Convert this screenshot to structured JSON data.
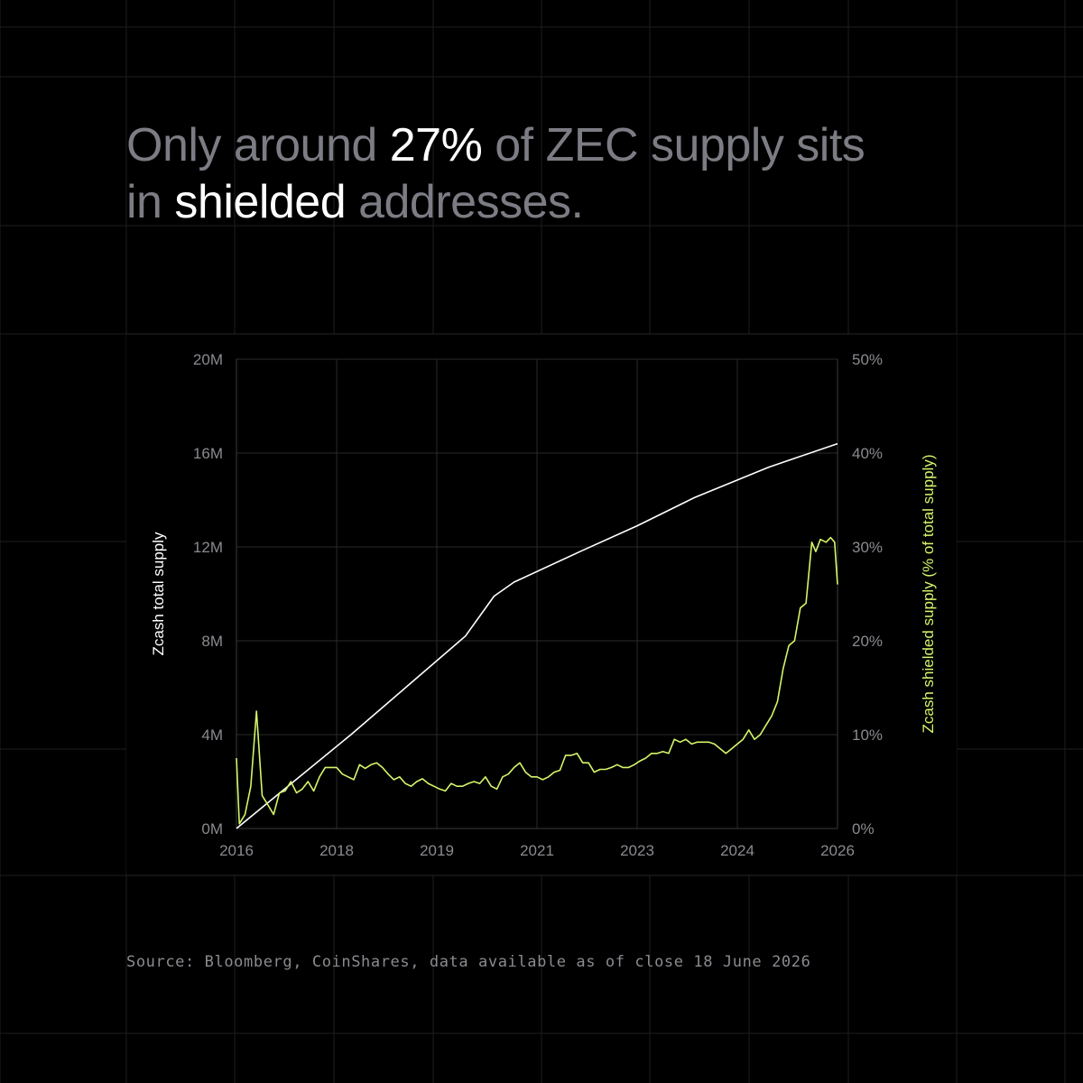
{
  "headline": {
    "seg1": "Only around ",
    "seg2": "27%",
    "seg3": " of ZEC supply sits",
    "seg4": "in ",
    "seg5": "shielded",
    "seg6": " addresses."
  },
  "source": "Source: Bloomberg, CoinShares, data available as of close 18 June 2026",
  "colors": {
    "background": "#000000",
    "supply_line": "#ffffff",
    "shielded_line": "#d4f56a",
    "muted_text": "#7c7c84",
    "grid": "#2a2a2a"
  },
  "chart_data": {
    "type": "line",
    "x_ticks": [
      "2016",
      "2018",
      "2019",
      "2021",
      "2023",
      "2024",
      "2026"
    ],
    "y_left": {
      "label": "Zcash total supply",
      "ticks": [
        "0M",
        "4M",
        "8M",
        "12M",
        "16M",
        "20M"
      ],
      "range": [
        0,
        20000000
      ]
    },
    "y_right": {
      "label": "Zcash shielded supply (% of total supply)",
      "ticks": [
        "0%",
        "10%",
        "20%",
        "30%",
        "40%",
        "50%"
      ],
      "range": [
        0,
        50
      ]
    },
    "x_range": [
      2016.0,
      2026.5
    ],
    "grid": true,
    "series": [
      {
        "name": "Zcash total supply",
        "axis": "left",
        "points": [
          [
            2016.0,
            0
          ],
          [
            2017.0,
            2000000
          ],
          [
            2018.0,
            4000000
          ],
          [
            2019.0,
            6100000
          ],
          [
            2020.0,
            8200000
          ],
          [
            2020.5,
            9900000
          ],
          [
            2020.85,
            10500000
          ],
          [
            2022.0,
            11800000
          ],
          [
            2023.0,
            12900000
          ],
          [
            2024.0,
            14100000
          ],
          [
            2025.0,
            15100000
          ],
          [
            2025.3,
            15400000
          ],
          [
            2026.5,
            16400000
          ]
        ]
      },
      {
        "name": "Zcash shielded supply (% of total supply)",
        "axis": "right",
        "points": [
          [
            2016.0,
            7.5
          ],
          [
            2016.05,
            0.5
          ],
          [
            2016.15,
            1.5
          ],
          [
            2016.25,
            4.5
          ],
          [
            2016.35,
            12.5
          ],
          [
            2016.45,
            3.5
          ],
          [
            2016.55,
            2.5
          ],
          [
            2016.65,
            1.5
          ],
          [
            2016.75,
            3.8
          ],
          [
            2016.85,
            4.0
          ],
          [
            2016.95,
            5.0
          ],
          [
            2017.05,
            3.8
          ],
          [
            2017.15,
            4.2
          ],
          [
            2017.25,
            5.0
          ],
          [
            2017.35,
            4.0
          ],
          [
            2017.45,
            5.5
          ],
          [
            2017.55,
            6.5
          ],
          [
            2017.65,
            6.5
          ],
          [
            2017.75,
            6.5
          ],
          [
            2017.85,
            5.8
          ],
          [
            2017.95,
            5.5
          ],
          [
            2018.05,
            5.2
          ],
          [
            2018.15,
            6.8
          ],
          [
            2018.25,
            6.4
          ],
          [
            2018.35,
            6.8
          ],
          [
            2018.45,
            7.0
          ],
          [
            2018.55,
            6.5
          ],
          [
            2018.65,
            5.8
          ],
          [
            2018.75,
            5.2
          ],
          [
            2018.85,
            5.5
          ],
          [
            2018.95,
            4.8
          ],
          [
            2019.05,
            4.5
          ],
          [
            2019.15,
            5.0
          ],
          [
            2019.25,
            5.3
          ],
          [
            2019.35,
            4.8
          ],
          [
            2019.45,
            4.5
          ],
          [
            2019.55,
            4.2
          ],
          [
            2019.65,
            4.0
          ],
          [
            2019.75,
            4.8
          ],
          [
            2019.85,
            4.5
          ],
          [
            2019.95,
            4.5
          ],
          [
            2020.05,
            4.8
          ],
          [
            2020.15,
            5.0
          ],
          [
            2020.25,
            4.8
          ],
          [
            2020.35,
            5.5
          ],
          [
            2020.45,
            4.5
          ],
          [
            2020.55,
            4.2
          ],
          [
            2020.65,
            5.5
          ],
          [
            2020.75,
            5.8
          ],
          [
            2020.85,
            6.5
          ],
          [
            2020.95,
            7.0
          ],
          [
            2021.05,
            6.0
          ],
          [
            2021.15,
            5.5
          ],
          [
            2021.25,
            5.5
          ],
          [
            2021.35,
            5.2
          ],
          [
            2021.45,
            5.5
          ],
          [
            2021.55,
            6.0
          ],
          [
            2021.65,
            6.2
          ],
          [
            2021.75,
            7.8
          ],
          [
            2021.85,
            7.8
          ],
          [
            2021.95,
            8.0
          ],
          [
            2022.05,
            7.0
          ],
          [
            2022.15,
            7.0
          ],
          [
            2022.25,
            6.0
          ],
          [
            2022.35,
            6.3
          ],
          [
            2022.45,
            6.3
          ],
          [
            2022.55,
            6.5
          ],
          [
            2022.65,
            6.8
          ],
          [
            2022.75,
            6.5
          ],
          [
            2022.85,
            6.5
          ],
          [
            2022.95,
            6.8
          ],
          [
            2023.05,
            7.2
          ],
          [
            2023.15,
            7.5
          ],
          [
            2023.25,
            8.0
          ],
          [
            2023.35,
            8.0
          ],
          [
            2023.45,
            8.2
          ],
          [
            2023.55,
            8.0
          ],
          [
            2023.65,
            9.5
          ],
          [
            2023.75,
            9.2
          ],
          [
            2023.85,
            9.5
          ],
          [
            2023.95,
            9.0
          ],
          [
            2024.05,
            9.2
          ],
          [
            2024.15,
            9.2
          ],
          [
            2024.25,
            9.2
          ],
          [
            2024.35,
            9.0
          ],
          [
            2024.45,
            8.5
          ],
          [
            2024.55,
            8.0
          ],
          [
            2024.65,
            8.5
          ],
          [
            2024.75,
            9.0
          ],
          [
            2024.85,
            9.5
          ],
          [
            2024.95,
            10.5
          ],
          [
            2025.05,
            9.5
          ],
          [
            2025.15,
            10.0
          ],
          [
            2025.25,
            11.0
          ],
          [
            2025.35,
            12.0
          ],
          [
            2025.45,
            13.5
          ],
          [
            2025.55,
            17.0
          ],
          [
            2025.65,
            19.5
          ],
          [
            2025.75,
            20.0
          ],
          [
            2025.85,
            23.5
          ],
          [
            2025.95,
            24.0
          ],
          [
            2026.05,
            30.5
          ],
          [
            2026.12,
            29.5
          ],
          [
            2026.2,
            30.8
          ],
          [
            2026.3,
            30.5
          ],
          [
            2026.38,
            31.0
          ],
          [
            2026.45,
            30.5
          ],
          [
            2026.5,
            26.0
          ]
        ]
      }
    ]
  }
}
